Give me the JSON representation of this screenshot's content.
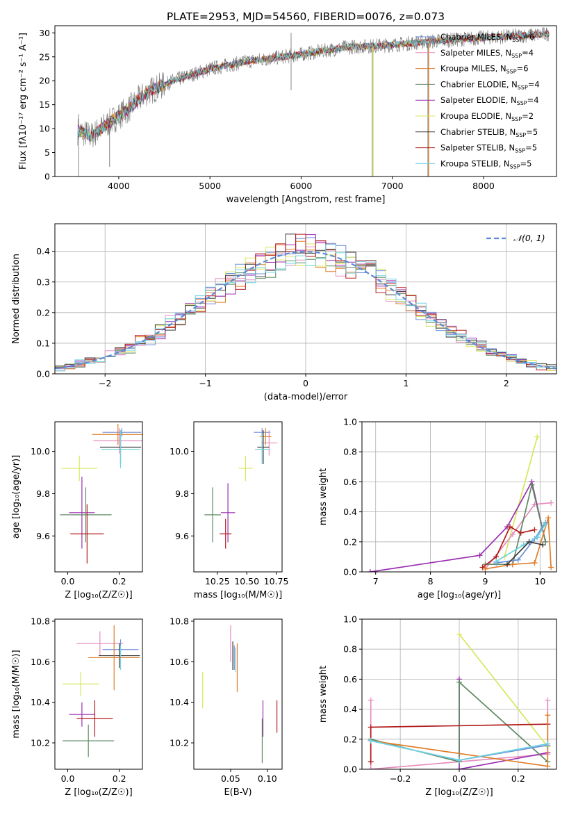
{
  "suptitle": "PLATE=2953, MJD=54560, FIBERID=0076, z=0.073",
  "models": [
    {
      "name": "Chabrier MILES",
      "nssp": "6",
      "color": "#6b8fd6"
    },
    {
      "name": "Salpeter MILES",
      "nssp": "4",
      "color": "#e58dbd"
    },
    {
      "name": "Kroupa MILES",
      "nssp": "6",
      "color": "#df7d2a"
    },
    {
      "name": "Chabrier ELODIE",
      "nssp": "4",
      "color": "#5f8a63"
    },
    {
      "name": "Salpeter ELODIE",
      "nssp": "4",
      "color": "#9a2eb0"
    },
    {
      "name": "Kroupa ELODIE",
      "nssp": "2",
      "color": "#d8e65c"
    },
    {
      "name": "Chabrier STELIB",
      "nssp": "5",
      "color": "#3b3b3b"
    },
    {
      "name": "Salpeter STELIB",
      "nssp": "5",
      "color": "#b21c1c"
    },
    {
      "name": "Kroupa STELIB",
      "nssp": "5",
      "color": "#6fd3e0"
    }
  ],
  "chart_data": [
    {
      "type": "line",
      "id": "spectrum",
      "xlabel": "wavelength [Angstrom, rest frame]",
      "ylabel": "Flux [fλ10⁻¹⁷ erg cm⁻² s⁻¹ A⁻¹]",
      "xlim": [
        3300,
        8800
      ],
      "ylim": [
        0,
        31.5
      ],
      "xticks": [
        4000,
        5000,
        6000,
        7000,
        8000
      ],
      "yticks": [
        0,
        5,
        10,
        15,
        20,
        25,
        30
      ],
      "data_series": "observed",
      "continuum": {
        "x": [
          3550,
          3700,
          3950,
          4100,
          4300,
          4600,
          5000,
          5400,
          6000,
          6500,
          7000,
          7400,
          8000,
          8500,
          8720
        ],
        "y": [
          9.5,
          8.5,
          12,
          14,
          17.5,
          20,
          22.5,
          24,
          25.5,
          27,
          27.5,
          28.2,
          29,
          29.5,
          29.8
        ]
      },
      "spikes": [
        {
          "x": 3560,
          "lo": 0,
          "hi": 13
        },
        {
          "x": 3900,
          "lo": 2,
          "hi": 10
        },
        {
          "x": 5890,
          "lo": 18,
          "hi": 30
        },
        {
          "x": 6780,
          "lo": 0,
          "hi": 28
        },
        {
          "x": 7390,
          "lo": 0,
          "hi": 29
        }
      ],
      "legend": {
        "loc": "upper right"
      }
    },
    {
      "type": "histogram",
      "id": "residuals",
      "xlabel": "(data-model)/error",
      "ylabel": "Normed distribution",
      "xlim": [
        -2.5,
        2.5
      ],
      "ylim": [
        0,
        0.49
      ],
      "xticks": [
        -2,
        -1,
        0,
        1,
        2
      ],
      "yticks": [
        0,
        0.1,
        0.2,
        0.3,
        0.4
      ],
      "grid": true,
      "bin_width": 0.1,
      "reference": {
        "label": "𝒩(0, 1)",
        "mean": 0,
        "sigma": 1,
        "color": "#5b8ad6"
      },
      "legend": {
        "loc": "upper right"
      }
    },
    {
      "type": "errorbar",
      "id": "age-vs-Z",
      "xlabel": "Z [log₁₀(Z/Z☉)]",
      "ylabel": "age  [log₁₀(age/yr)]",
      "xlim": [
        -0.05,
        0.29
      ],
      "ylim": [
        9.43,
        10.14
      ],
      "xticks": [
        0.0,
        0.2
      ],
      "yticks": [
        9.6,
        9.8,
        10.0
      ],
      "points": [
        {
          "x": 0.21,
          "y": 10.09,
          "ex": 0.075,
          "ey": 0.02,
          "color": "#6b8fd6"
        },
        {
          "x": 0.2,
          "y": 10.05,
          "ex": 0.1,
          "ey": 0.06,
          "color": "#e58dbd"
        },
        {
          "x": 0.195,
          "y": 10.08,
          "ex": 0.1,
          "ey": 0.05,
          "color": "#df7d2a"
        },
        {
          "x": 0.205,
          "y": 10.02,
          "ex": 0.08,
          "ey": 0.08,
          "color": "#3b3b3b"
        },
        {
          "x": 0.205,
          "y": 10.01,
          "ex": 0.075,
          "ey": 0.09,
          "color": "#6fd3e0"
        },
        {
          "x": 0.045,
          "y": 9.92,
          "ex": 0.07,
          "ey": 0.06,
          "color": "#d8e65c"
        },
        {
          "x": 0.055,
          "y": 9.71,
          "ex": 0.05,
          "ey": 0.17,
          "color": "#9a2eb0"
        },
        {
          "x": 0.07,
          "y": 9.7,
          "ex": 0.1,
          "ey": 0.13,
          "color": "#5f8a63"
        },
        {
          "x": 0.075,
          "y": 9.61,
          "ex": 0.065,
          "ey": 0.14,
          "color": "#b21c1c"
        }
      ]
    },
    {
      "type": "errorbar",
      "id": "age-vs-mass",
      "xlabel": "mass [log₁₀(M/M☉)]",
      "ylabel": "",
      "xlim": [
        10.05,
        10.8
      ],
      "ylim": [
        9.43,
        10.14
      ],
      "xticks": [
        10.25,
        10.5,
        10.75
      ],
      "yticks": [
        9.6,
        9.8,
        10.0
      ],
      "points": [
        {
          "x": 10.63,
          "y": 10.09,
          "ex": 0.07,
          "ey": 0.02,
          "color": "#6b8fd6"
        },
        {
          "x": 10.69,
          "y": 10.04,
          "ex": 0.07,
          "ey": 0.06,
          "color": "#e58dbd"
        },
        {
          "x": 10.66,
          "y": 10.07,
          "ex": 0.05,
          "ey": 0.04,
          "color": "#df7d2a"
        },
        {
          "x": 10.64,
          "y": 10.02,
          "ex": 0.05,
          "ey": 0.08,
          "color": "#3b3b3b"
        },
        {
          "x": 10.63,
          "y": 10.01,
          "ex": 0.06,
          "ey": 0.07,
          "color": "#6fd3e0"
        },
        {
          "x": 10.49,
          "y": 9.92,
          "ex": 0.06,
          "ey": 0.06,
          "color": "#d8e65c"
        },
        {
          "x": 10.34,
          "y": 9.71,
          "ex": 0.06,
          "ey": 0.14,
          "color": "#9a2eb0"
        },
        {
          "x": 10.21,
          "y": 9.7,
          "ex": 0.07,
          "ey": 0.13,
          "color": "#5f8a63"
        },
        {
          "x": 10.32,
          "y": 9.61,
          "ex": 0.05,
          "ey": 0.07,
          "color": "#b21c1c"
        }
      ]
    },
    {
      "type": "line",
      "id": "weight-vs-age",
      "xlabel": "age  [log₁₀(age/yr)]",
      "ylabel": "mass weight",
      "xlim": [
        6.75,
        10.3
      ],
      "ylim": [
        0,
        1.0
      ],
      "xticks": [
        7,
        8,
        9,
        10
      ],
      "yticks": [
        0.0,
        0.2,
        0.4,
        0.6,
        0.8,
        1.0
      ],
      "grid": true,
      "series": [
        {
          "color": "#d8e65c",
          "x": [
            9.35,
            9.95
          ],
          "y": [
            0.1,
            0.9
          ]
        },
        {
          "color": "#e58dbd",
          "x": [
            9.0,
            9.5,
            9.9,
            10.2
          ],
          "y": [
            0.02,
            0.25,
            0.45,
            0.46
          ]
        },
        {
          "color": "#9a2eb0",
          "x": [
            6.9,
            8.9,
            9.4,
            9.85,
            10.1
          ],
          "y": [
            0.0,
            0.11,
            0.3,
            0.6,
            0.2
          ]
        },
        {
          "color": "#5f8a63",
          "x": [
            9.0,
            9.5,
            9.85,
            10.1
          ],
          "y": [
            0.05,
            0.05,
            0.58,
            0.2
          ]
        },
        {
          "color": "#b21c1c",
          "x": [
            8.95,
            9.2,
            9.45,
            9.65,
            9.9
          ],
          "y": [
            0.03,
            0.1,
            0.3,
            0.26,
            0.28
          ]
        },
        {
          "color": "#df7d2a",
          "x": [
            9.0,
            9.5,
            9.9,
            10.15,
            10.2
          ],
          "y": [
            0.02,
            0.05,
            0.06,
            0.36,
            0.03
          ]
        },
        {
          "color": "#6b8fd6",
          "x": [
            9.2,
            9.6,
            9.9,
            10.1
          ],
          "y": [
            0.06,
            0.08,
            0.22,
            0.33
          ]
        },
        {
          "color": "#6fd3e0",
          "x": [
            9.2,
            9.7,
            9.95,
            10.1
          ],
          "y": [
            0.07,
            0.18,
            0.23,
            0.32
          ]
        },
        {
          "color": "#3b3b3b",
          "x": [
            9.4,
            9.8,
            10.05
          ],
          "y": [
            0.05,
            0.2,
            0.18
          ]
        }
      ]
    },
    {
      "type": "errorbar",
      "id": "mass-vs-Z",
      "xlabel": "Z [log₁₀(Z/Z☉)]",
      "ylabel": "mass [log₁₀(M/M☉)]",
      "xlim": [
        -0.05,
        0.29
      ],
      "ylim": [
        10.07,
        10.81
      ],
      "xticks": [
        0.0,
        0.2
      ],
      "yticks": [
        10.2,
        10.4,
        10.6,
        10.8
      ],
      "points": [
        {
          "x": 0.125,
          "y": 10.69,
          "ex": 0.09,
          "ey": 0.06,
          "color": "#e58dbd"
        },
        {
          "x": 0.205,
          "y": 10.66,
          "ex": 0.07,
          "ey": 0.05,
          "color": "#6b8fd6"
        },
        {
          "x": 0.2,
          "y": 10.63,
          "ex": 0.08,
          "ey": 0.06,
          "color": "#3b3b3b"
        },
        {
          "x": 0.205,
          "y": 10.62,
          "ex": 0.075,
          "ey": 0.06,
          "color": "#6fd3e0"
        },
        {
          "x": 0.18,
          "y": 10.62,
          "ex": 0.1,
          "ey": 0.16,
          "color": "#df7d2a"
        },
        {
          "x": 0.05,
          "y": 10.49,
          "ex": 0.07,
          "ey": 0.06,
          "color": "#d8e65c"
        },
        {
          "x": 0.055,
          "y": 10.34,
          "ex": 0.05,
          "ey": 0.06,
          "color": "#9a2eb0"
        },
        {
          "x": 0.105,
          "y": 10.32,
          "ex": 0.07,
          "ey": 0.09,
          "color": "#b21c1c"
        },
        {
          "x": 0.08,
          "y": 10.21,
          "ex": 0.1,
          "ey": 0.08,
          "color": "#5f8a63"
        }
      ]
    },
    {
      "type": "errorbar",
      "id": "mass-vs-ebv",
      "xlabel": "E(B-V)",
      "ylabel": "",
      "xlim": [
        0.0,
        0.12
      ],
      "ylim": [
        10.07,
        10.81
      ],
      "xticks": [
        0.05,
        0.1
      ],
      "yticks": [
        10.2,
        10.4,
        10.6,
        10.8
      ],
      "points": [
        {
          "x": 0.05,
          "y": 10.69,
          "ex": 0,
          "ey": 0.09,
          "color": "#e58dbd"
        },
        {
          "x": 0.053,
          "y": 10.63,
          "ex": 0,
          "ey": 0.07,
          "color": "#3b3b3b"
        },
        {
          "x": 0.055,
          "y": 10.62,
          "ex": 0,
          "ey": 0.06,
          "color": "#6b8fd6"
        },
        {
          "x": 0.057,
          "y": 10.61,
          "ex": 0,
          "ey": 0.06,
          "color": "#6fd3e0"
        },
        {
          "x": 0.059,
          "y": 10.57,
          "ex": 0,
          "ey": 0.12,
          "color": "#df7d2a"
        },
        {
          "x": 0.012,
          "y": 10.46,
          "ex": 0,
          "ey": 0.09,
          "color": "#d8e65c"
        },
        {
          "x": 0.094,
          "y": 10.32,
          "ex": 0,
          "ey": 0.09,
          "color": "#9a2eb0"
        },
        {
          "x": 0.093,
          "y": 10.21,
          "ex": 0,
          "ey": 0.11,
          "color": "#5f8a63"
        },
        {
          "x": 0.113,
          "y": 10.33,
          "ex": 0,
          "ey": 0.08,
          "color": "#b21c1c"
        }
      ]
    },
    {
      "type": "line",
      "id": "weight-vs-Z",
      "xlabel": "Z [log₁₀(Z/Z☉)]",
      "ylabel": "mass weight",
      "xlim": [
        -0.33,
        0.33
      ],
      "ylim": [
        0,
        1.0
      ],
      "xticks": [
        -0.2,
        0.0,
        0.2
      ],
      "yticks": [
        0.0,
        0.2,
        0.4,
        0.6,
        0.8,
        1.0
      ],
      "grid": true,
      "series": [
        {
          "color": "#d8e65c",
          "x": [
            0.0,
            0.3
          ],
          "y": [
            0.9,
            0.15
          ]
        },
        {
          "color": "#e58dbd",
          "x": [
            -0.3,
            -0.3,
            0.3,
            0.3
          ],
          "y": [
            0.46,
            0.0,
            0.1,
            0.46
          ]
        },
        {
          "color": "#9a2eb0",
          "x": [
            0.0,
            0.0,
            0.3
          ],
          "y": [
            0.6,
            0.0,
            0.11
          ]
        },
        {
          "color": "#5f8a63",
          "x": [
            -0.3,
            0.0,
            0.0,
            0.3
          ],
          "y": [
            0.2,
            0.05,
            0.58,
            0.05
          ]
        },
        {
          "color": "#b21c1c",
          "x": [
            -0.3,
            -0.3,
            0.3
          ],
          "y": [
            0.05,
            0.28,
            0.3
          ]
        },
        {
          "color": "#df7d2a",
          "x": [
            -0.3,
            0.3,
            0.3
          ],
          "y": [
            0.19,
            0.02,
            0.36
          ]
        },
        {
          "color": "#6b8fd6",
          "x": [
            -0.3,
            0.0,
            0.3
          ],
          "y": [
            0.19,
            0.06,
            0.16
          ]
        },
        {
          "color": "#6fd3e0",
          "x": [
            -0.3,
            0.0,
            0.3
          ],
          "y": [
            0.19,
            0.06,
            0.17
          ]
        }
      ]
    }
  ]
}
